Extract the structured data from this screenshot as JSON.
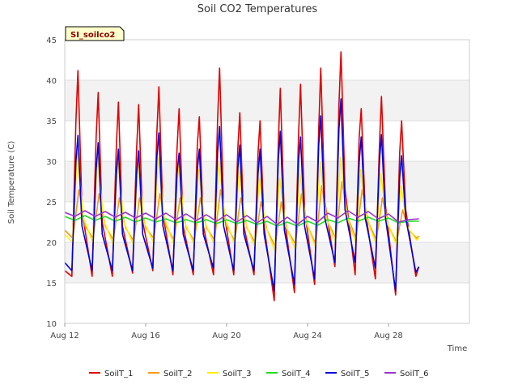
{
  "chart_data": {
    "type": "line",
    "title": "Soil CO2 Temperatures",
    "xlabel": "Time",
    "ylabel": "Soil Temperature (C)",
    "site_label": "SI_soilco2",
    "xlim": [
      0,
      20
    ],
    "ylim": [
      10,
      45
    ],
    "yticks": [
      10,
      15,
      20,
      25,
      30,
      35,
      40,
      45
    ],
    "xticks": [
      {
        "day": 0,
        "label": "Aug 12"
      },
      {
        "day": 4,
        "label": "Aug 16"
      },
      {
        "day": 8,
        "label": "Aug 20"
      },
      {
        "day": 12,
        "label": "Aug 24"
      },
      {
        "day": 16,
        "label": "Aug 28"
      }
    ],
    "shaded_bands": [
      [
        15,
        20
      ],
      [
        25,
        30
      ],
      [
        35,
        40
      ]
    ],
    "series": [
      {
        "name": "SoilT_1",
        "color": "#e00000",
        "x": [
          0.0,
          0.35,
          0.55,
          0.65,
          0.85,
          1.35,
          1.55,
          1.65,
          1.85,
          2.35,
          2.55,
          2.65,
          2.85,
          3.35,
          3.55,
          3.65,
          3.85,
          4.35,
          4.55,
          4.65,
          4.85,
          5.35,
          5.55,
          5.65,
          5.85,
          6.35,
          6.55,
          6.65,
          6.85,
          7.35,
          7.55,
          7.65,
          7.85,
          8.35,
          8.55,
          8.65,
          8.85,
          9.35,
          9.55,
          9.65,
          9.85,
          10.35,
          10.55,
          10.65,
          10.85,
          11.35,
          11.55,
          11.65,
          11.85,
          12.35,
          12.55,
          12.65,
          12.85,
          13.35,
          13.55,
          13.65,
          13.85,
          14.35,
          14.55,
          14.65,
          14.85,
          15.35,
          15.55,
          15.65,
          15.85,
          16.35,
          16.55,
          16.65,
          16.85,
          17.35,
          17.5
        ],
        "y": [
          16.5,
          15.8,
          35.0,
          41.2,
          24.0,
          15.8,
          33.0,
          38.5,
          22.5,
          15.8,
          32.0,
          37.3,
          22.0,
          16.2,
          31.5,
          37.0,
          22.5,
          16.5,
          33.5,
          39.2,
          23.5,
          16.0,
          31.5,
          36.5,
          22.0,
          16.0,
          32.0,
          35.5,
          22.0,
          16.0,
          35.0,
          41.5,
          24.0,
          16.0,
          31.5,
          36.0,
          22.0,
          16.0,
          31.0,
          35.0,
          22.0,
          12.8,
          32.0,
          39.0,
          23.0,
          13.8,
          33.0,
          39.5,
          24.0,
          14.8,
          34.0,
          41.5,
          25.0,
          17.0,
          37.0,
          43.5,
          26.5,
          16.0,
          33.0,
          36.5,
          24.0,
          15.5,
          32.0,
          38.0,
          24.5,
          13.5,
          31.0,
          35.0,
          24.0,
          15.8,
          17.0
        ]
      },
      {
        "name": "SoilT_2",
        "color": "#ff9900",
        "x": [
          0.0,
          0.4,
          0.7,
          1.0,
          1.4,
          1.7,
          2.0,
          2.4,
          2.7,
          3.0,
          3.4,
          3.7,
          4.0,
          4.4,
          4.7,
          5.0,
          5.4,
          5.7,
          6.0,
          6.4,
          6.7,
          7.0,
          7.4,
          7.7,
          8.0,
          8.4,
          8.7,
          9.0,
          9.4,
          9.7,
          10.0,
          10.4,
          10.7,
          11.0,
          11.4,
          11.7,
          12.0,
          12.4,
          12.7,
          13.0,
          13.4,
          13.7,
          14.0,
          14.4,
          14.7,
          15.0,
          15.4,
          15.7,
          16.0,
          16.4,
          16.7,
          17.0,
          17.4,
          17.5
        ],
        "y": [
          21.5,
          20.5,
          26.5,
          22.0,
          20.5,
          26.0,
          22.0,
          20.3,
          25.5,
          21.8,
          20.2,
          25.5,
          21.8,
          20.5,
          26.0,
          22.0,
          20.3,
          25.5,
          21.8,
          20.2,
          25.5,
          21.8,
          20.3,
          26.5,
          22.0,
          20.2,
          25.5,
          21.8,
          20.0,
          25.0,
          21.5,
          19.5,
          25.0,
          21.5,
          19.8,
          26.0,
          22.0,
          19.8,
          27.0,
          22.5,
          20.5,
          27.5,
          23.0,
          20.5,
          26.5,
          22.5,
          20.3,
          25.5,
          22.0,
          20.0,
          24.0,
          21.5,
          20.5,
          20.8
        ]
      },
      {
        "name": "SoilT_3",
        "color": "#ffee00",
        "x": [
          0.0,
          0.38,
          0.62,
          0.92,
          1.38,
          1.62,
          1.92,
          2.38,
          2.62,
          2.92,
          3.38,
          3.62,
          3.92,
          4.38,
          4.62,
          4.92,
          5.38,
          5.62,
          5.92,
          6.38,
          6.62,
          6.92,
          7.38,
          7.62,
          7.92,
          8.38,
          8.62,
          8.92,
          9.38,
          9.62,
          9.92,
          10.38,
          10.62,
          10.92,
          11.38,
          11.62,
          11.92,
          12.38,
          12.62,
          12.92,
          13.38,
          13.62,
          13.92,
          14.38,
          14.62,
          14.92,
          15.38,
          15.62,
          15.92,
          16.38,
          16.62,
          16.92,
          17.38,
          17.5
        ],
        "y": [
          21.0,
          20.0,
          31.0,
          23.0,
          20.0,
          30.5,
          22.8,
          19.8,
          30.0,
          22.5,
          19.8,
          29.5,
          22.5,
          20.0,
          30.5,
          23.0,
          19.8,
          29.5,
          22.5,
          19.8,
          29.0,
          22.5,
          19.8,
          30.0,
          23.0,
          19.8,
          29.0,
          22.5,
          19.5,
          28.0,
          22.0,
          19.0,
          28.0,
          22.0,
          19.3,
          28.5,
          22.5,
          19.5,
          30.0,
          23.0,
          20.0,
          30.5,
          23.5,
          20.0,
          29.0,
          23.0,
          19.8,
          28.5,
          22.5,
          19.8,
          27.0,
          22.0,
          20.3,
          20.5
        ]
      },
      {
        "name": "SoilT_4",
        "color": "#22dd22",
        "x": [
          0.0,
          0.5,
          1.0,
          1.5,
          2.0,
          2.5,
          3.0,
          3.5,
          4.0,
          4.5,
          5.0,
          5.5,
          6.0,
          6.5,
          7.0,
          7.5,
          8.0,
          8.5,
          9.0,
          9.5,
          10.0,
          10.5,
          11.0,
          11.5,
          12.0,
          12.5,
          13.0,
          13.5,
          14.0,
          14.5,
          15.0,
          15.5,
          16.0,
          16.5,
          17.0,
          17.5
        ],
        "y": [
          23.2,
          22.7,
          23.3,
          22.7,
          23.2,
          22.6,
          23.1,
          22.5,
          23.0,
          22.5,
          22.9,
          22.4,
          22.8,
          22.4,
          22.8,
          22.3,
          22.8,
          22.3,
          22.7,
          22.2,
          22.6,
          22.0,
          22.5,
          22.0,
          22.6,
          22.1,
          22.8,
          22.4,
          23.0,
          22.6,
          23.1,
          22.6,
          23.0,
          22.4,
          22.6,
          22.6
        ]
      },
      {
        "name": "SoilT_5",
        "color": "#0000dd",
        "x": [
          0.0,
          0.35,
          0.55,
          0.65,
          0.85,
          1.35,
          1.55,
          1.65,
          1.85,
          2.35,
          2.55,
          2.65,
          2.85,
          3.35,
          3.55,
          3.65,
          3.85,
          4.35,
          4.55,
          4.65,
          4.85,
          5.35,
          5.55,
          5.65,
          5.85,
          6.35,
          6.55,
          6.65,
          6.85,
          7.35,
          7.55,
          7.65,
          7.85,
          8.35,
          8.55,
          8.65,
          8.85,
          9.35,
          9.55,
          9.65,
          9.85,
          10.35,
          10.55,
          10.65,
          10.85,
          11.35,
          11.55,
          11.65,
          11.85,
          12.35,
          12.55,
          12.65,
          12.85,
          13.35,
          13.55,
          13.65,
          13.85,
          14.35,
          14.55,
          14.65,
          14.85,
          15.35,
          15.55,
          15.65,
          15.85,
          16.35,
          16.55,
          16.65,
          16.85,
          17.35,
          17.5
        ],
        "y": [
          17.5,
          16.5,
          30.0,
          33.2,
          22.0,
          16.5,
          29.0,
          32.3,
          21.0,
          16.5,
          28.5,
          31.5,
          21.0,
          16.5,
          28.5,
          31.3,
          21.0,
          16.8,
          30.5,
          33.5,
          22.0,
          16.5,
          28.5,
          31.0,
          21.0,
          16.5,
          29.0,
          31.5,
          21.0,
          16.8,
          31.0,
          34.3,
          22.0,
          16.5,
          29.0,
          32.0,
          21.0,
          16.5,
          28.5,
          31.5,
          21.0,
          14.0,
          30.0,
          33.7,
          21.5,
          14.8,
          30.0,
          33.0,
          22.0,
          15.5,
          32.0,
          35.6,
          23.0,
          17.5,
          34.0,
          37.7,
          24.0,
          17.5,
          30.0,
          33.0,
          23.0,
          16.8,
          30.0,
          33.3,
          23.0,
          14.0,
          28.0,
          30.7,
          23.0,
          16.3,
          17.0
        ]
      },
      {
        "name": "SoilT_6",
        "color": "#9933cc",
        "x": [
          0.0,
          0.5,
          1.0,
          1.5,
          2.0,
          2.5,
          3.0,
          3.5,
          4.0,
          4.5,
          5.0,
          5.5,
          6.0,
          6.5,
          7.0,
          7.5,
          8.0,
          8.5,
          9.0,
          9.5,
          10.0,
          10.5,
          11.0,
          11.5,
          12.0,
          12.5,
          13.0,
          13.5,
          14.0,
          14.5,
          15.0,
          15.5,
          16.0,
          16.5,
          17.0,
          17.5
        ],
        "y": [
          23.7,
          23.2,
          23.9,
          23.2,
          23.8,
          23.1,
          23.7,
          23.0,
          23.6,
          22.9,
          23.6,
          22.8,
          23.5,
          22.7,
          23.4,
          22.6,
          23.4,
          22.5,
          23.3,
          22.4,
          23.2,
          22.2,
          23.1,
          22.2,
          23.2,
          22.5,
          23.6,
          23.0,
          23.9,
          23.1,
          23.8,
          22.9,
          23.5,
          22.5,
          22.8,
          22.9
        ]
      }
    ]
  }
}
